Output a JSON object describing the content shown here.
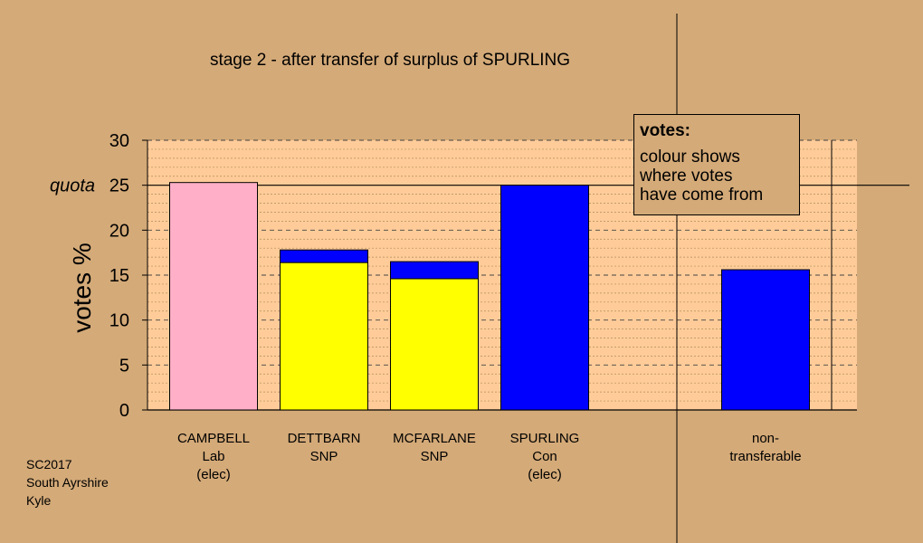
{
  "chart_data": {
    "type": "bar",
    "title": "stage 2 - after transfer of surplus of SPURLING",
    "ylabel": "votes %",
    "ylim": [
      0,
      30
    ],
    "yticks": [
      0,
      5,
      10,
      15,
      20,
      25,
      30
    ],
    "quota": {
      "value": 25,
      "label": "quota"
    },
    "categories": [
      [
        "CAMPBELL",
        "Lab",
        "(elec)"
      ],
      [
        "DETTBARN",
        "SNP"
      ],
      [
        "MCFARLANE",
        "SNP"
      ],
      [
        "SPURLING",
        "Con",
        "(elec)"
      ],
      [],
      [
        "non-",
        "transferable"
      ]
    ],
    "bars": [
      {
        "segments": [
          {
            "value": 25.3,
            "color": "#ffb0c8"
          }
        ]
      },
      {
        "segments": [
          {
            "value": 16.4,
            "color": "#ffff00"
          },
          {
            "value": 1.4,
            "color": "#0000ff"
          }
        ]
      },
      {
        "segments": [
          {
            "value": 14.6,
            "color": "#ffff00"
          },
          {
            "value": 1.9,
            "color": "#0000ff"
          }
        ]
      },
      {
        "segments": [
          {
            "value": 25.0,
            "color": "#0000ff"
          }
        ]
      },
      {
        "segments": []
      },
      {
        "segments": [
          {
            "value": 15.6,
            "color": "#0000ff"
          }
        ]
      }
    ],
    "colors": {
      "background": "#d4aa78",
      "plot_area": "#ffcc99",
      "lab": "#ffb0c8",
      "snp": "#ffff00",
      "con": "#0000ff"
    }
  },
  "legend": {
    "title": "votes:",
    "lines": [
      "colour shows",
      "where votes",
      "have come from"
    ]
  },
  "note": {
    "lines": [
      "SC2017",
      "South Ayrshire",
      "Kyle"
    ]
  }
}
